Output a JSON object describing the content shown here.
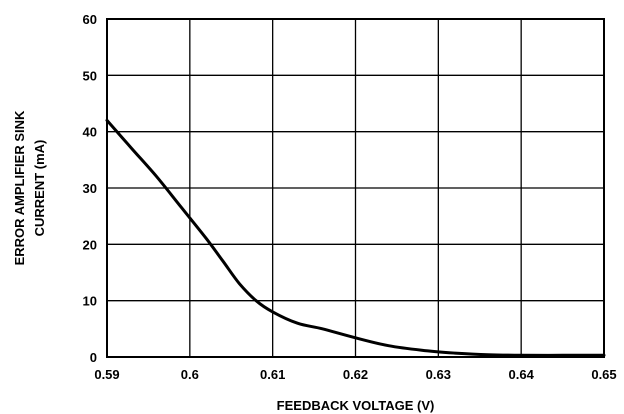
{
  "chart_data": {
    "type": "line",
    "title": "",
    "xlabel": "FEEDBACK VOLTAGE (V)",
    "ylabel_lines": [
      "ERROR AMPLIFIER SINK",
      "CURRENT (mA)"
    ],
    "xlim": [
      0.59,
      0.65
    ],
    "ylim": [
      0,
      60
    ],
    "x_ticks": [
      0.59,
      0.6,
      0.61,
      0.62,
      0.63,
      0.64,
      0.65
    ],
    "x_tick_labels": [
      "0.59",
      "0.6",
      "0.61",
      "0.62",
      "0.63",
      "0.64",
      "0.65"
    ],
    "y_ticks": [
      0,
      10,
      20,
      30,
      40,
      50,
      60
    ],
    "y_tick_labels": [
      "0",
      "10",
      "20",
      "30",
      "40",
      "50",
      "60"
    ],
    "grid": true,
    "series": [
      {
        "x": [
          0.59,
          0.593,
          0.596,
          0.599,
          0.602,
          0.604,
          0.606,
          0.608,
          0.61,
          0.613,
          0.616,
          0.62,
          0.624,
          0.628,
          0.632,
          0.636,
          0.64,
          0.645,
          0.65
        ],
        "y": [
          42,
          37,
          32,
          26.5,
          21,
          17,
          13,
          10,
          8,
          6,
          5,
          3.4,
          2,
          1.2,
          0.7,
          0.4,
          0.3,
          0.3,
          0.3
        ]
      }
    ],
    "colors": {
      "line": "#000000",
      "grid": "#000000"
    }
  }
}
